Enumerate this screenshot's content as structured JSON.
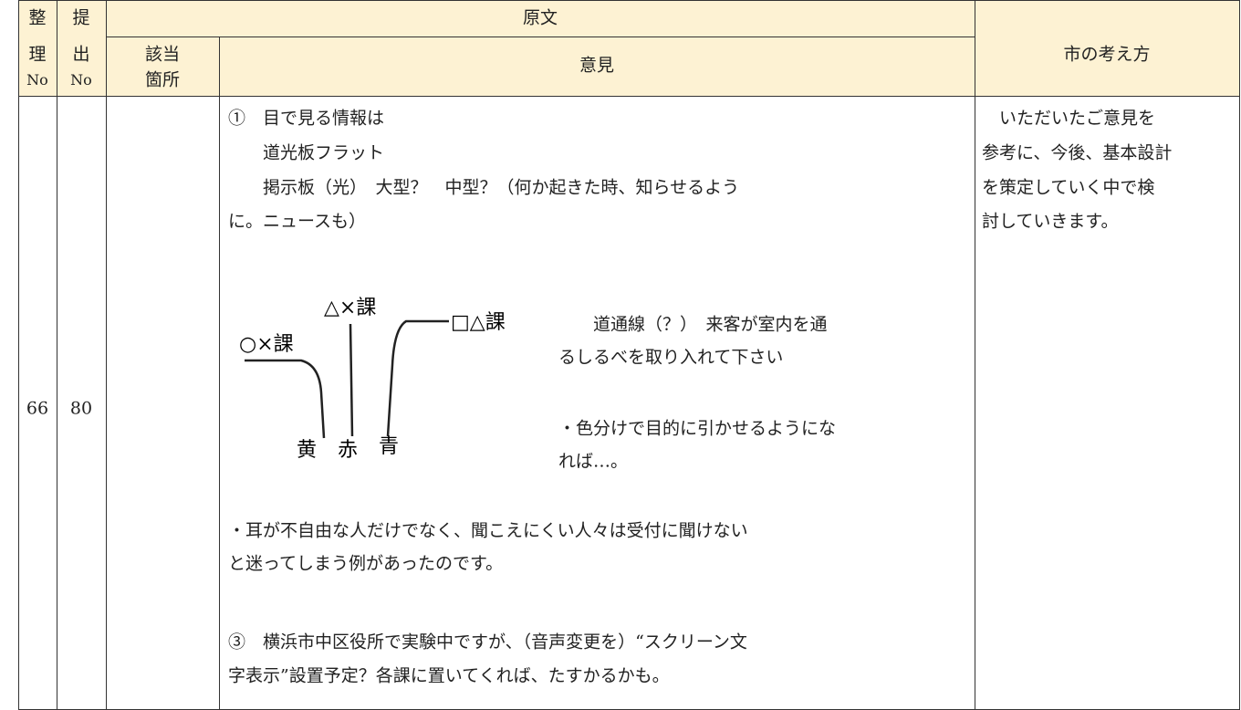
{
  "header": {
    "seiri": [
      "整",
      "理",
      "No"
    ],
    "teishutsu": [
      "提",
      "出",
      "No"
    ],
    "original": "原文",
    "section": [
      "該当",
      "箇所"
    ],
    "opinion": "意見",
    "response": "市の考え方"
  },
  "rows": [
    {
      "seiri_no": 66,
      "teishutsu_no": 80,
      "opinion_lines": [
        "①　目で見る情報は",
        "　　道光板フラット",
        "　　掲示板（光）　大型？　中型？（何か起きた時、知らせるよう",
        "に。ニュースも）"
      ],
      "sketch": {
        "labels": [
          "○×課",
          "△×課",
          "□△課"
        ],
        "colors": [
          "黄",
          "赤",
          "青"
        ]
      },
      "side_lines": [
        "　　道通線（？）　来客が室内を通",
        "るしるべを取り入れて下さい",
        "・色分けで目的に引かせるようにな",
        "れば…。"
      ],
      "opinion_tail": [
        "・耳が不自由な人だけでなく、聞こえにくい人々は受付に聞けない",
        "と迷ってしまう例があったのです。",
        "③　横浜市中区役所で実験中ですが、（音声変更を）“スクリーン文",
        "字表示”設置予定？各課に置いてくれば、たすかるかも。"
      ],
      "response_lines": [
        "　いただいたご意見を",
        "参考に、今後、基本設計",
        "を策定していく中で検",
        "討していきます。"
      ]
    }
  ]
}
